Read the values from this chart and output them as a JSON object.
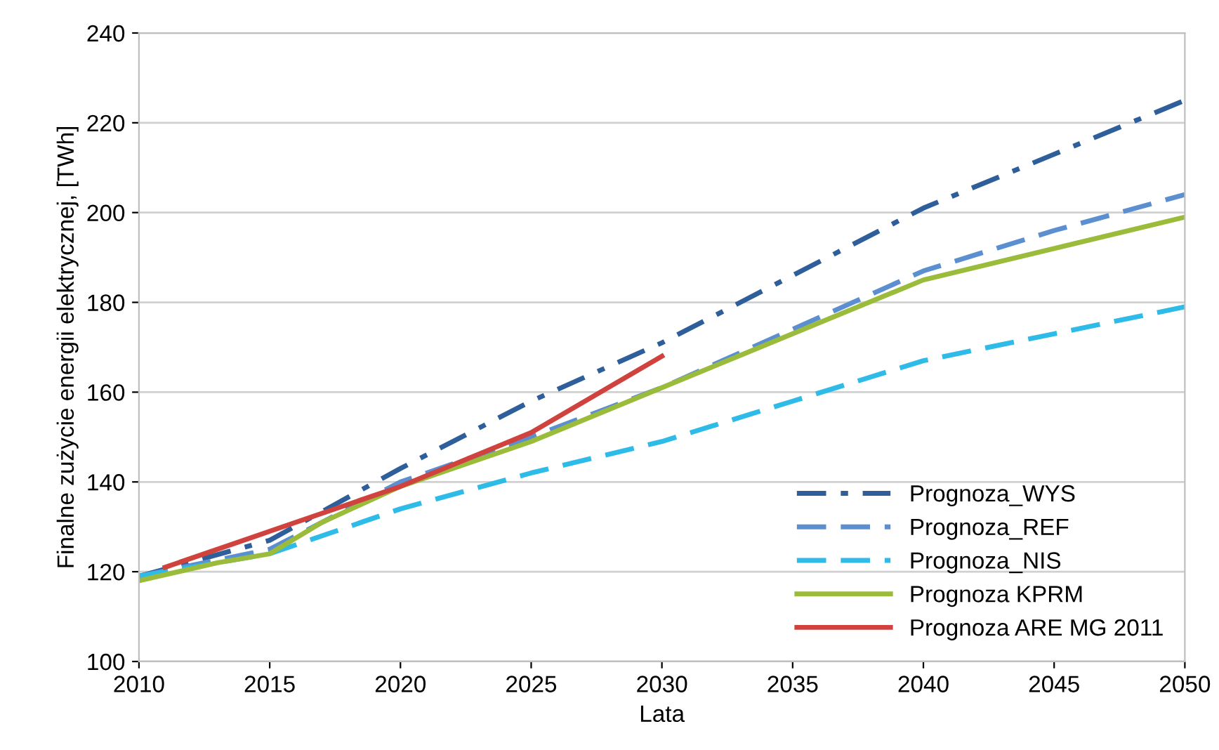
{
  "chart_data": {
    "type": "line",
    "xlabel": "Lata",
    "ylabel": "Finalne zużycie energii elektrycznej, [TWh]",
    "xlim": [
      2010,
      2050
    ],
    "xticks": [
      2010,
      2015,
      2020,
      2025,
      2030,
      2035,
      2040,
      2045,
      2050
    ],
    "ylim": [
      100,
      240
    ],
    "yticks": [
      100,
      120,
      140,
      160,
      180,
      200,
      220,
      240
    ],
    "grid": "y",
    "legend": "bottom right",
    "marker": "none",
    "series": [
      {
        "name": "Prognoza_WYS",
        "color": "#2e5f9a",
        "line_style": "dashdot",
        "x": [
          2010,
          2015,
          2020,
          2025,
          2030,
          2035,
          2040,
          2045,
          2050
        ],
        "values": [
          119,
          127,
          143,
          158,
          171,
          186,
          201,
          213,
          225
        ]
      },
      {
        "name": "Prognoza_REF",
        "color": "#5b8fd0",
        "line_style": "dashed",
        "x": [
          2010,
          2015,
          2017,
          2020,
          2025,
          2030,
          2035,
          2040,
          2045,
          2050
        ],
        "values": [
          119,
          125,
          131,
          140,
          150,
          161,
          174,
          187,
          196,
          204
        ]
      },
      {
        "name": "Prognoza_NIS",
        "color": "#2ebbe8",
        "line_style": "dashed",
        "x": [
          2010,
          2015,
          2020,
          2025,
          2030,
          2035,
          2040,
          2045,
          2050
        ],
        "values": [
          119,
          124,
          134,
          142,
          149,
          158,
          167,
          173,
          179
        ]
      },
      {
        "name": "Prognoza KPRM",
        "color": "#9bbb3b",
        "line_style": "solid",
        "x": [
          2010,
          2013,
          2015,
          2017,
          2020,
          2025,
          2030,
          2035,
          2040,
          2045,
          2050
        ],
        "values": [
          118,
          122,
          124,
          131,
          139,
          149,
          161,
          173,
          185,
          192,
          199
        ]
      },
      {
        "name": "Prognoza ARE MG 2011",
        "color": "#d0423d",
        "line_style": "solid",
        "x": [
          2011,
          2015,
          2020,
          2025,
          2030
        ],
        "values": [
          121,
          129,
          139,
          151,
          168
        ]
      }
    ]
  }
}
